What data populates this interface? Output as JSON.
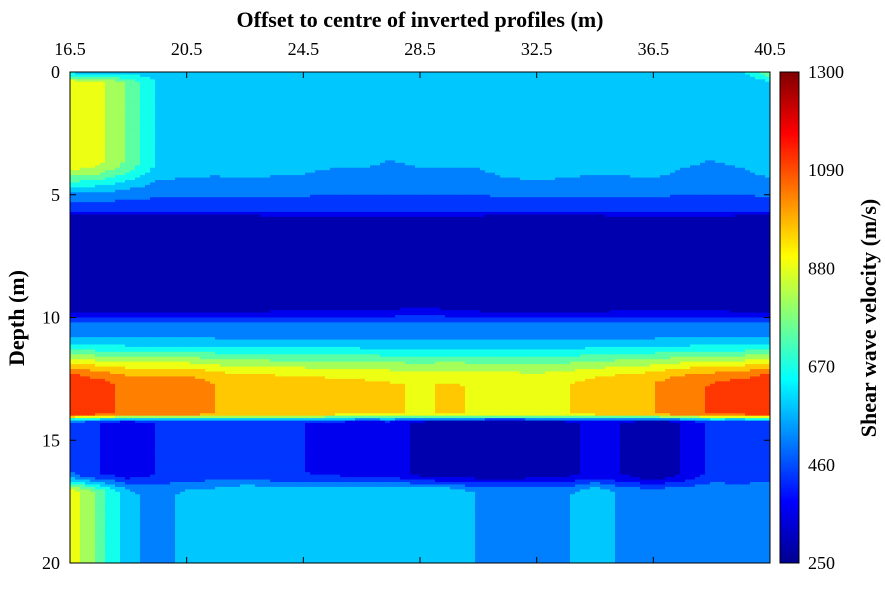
{
  "chart_data": {
    "type": "heatmap",
    "title": "Offset to centre of inverted profiles (m)",
    "xlabel": "",
    "ylabel": "Depth (m)",
    "colorbar_label": "Shear wave velocity (m/s)",
    "xlim": [
      16.5,
      40.5
    ],
    "ylim": [
      0,
      20
    ],
    "x_axis_position": "top",
    "y_axis_reversed": true,
    "x_ticks": [
      16.5,
      20.5,
      24.5,
      28.5,
      32.5,
      36.5,
      40.5
    ],
    "x_tick_labels": [
      "16.5",
      "20.5",
      "24.5",
      "28.5",
      "32.5",
      "36.5",
      "40.5"
    ],
    "y_ticks": [
      0,
      5,
      10,
      15,
      20
    ],
    "y_tick_labels": [
      "0",
      "5",
      "10",
      "15",
      "20"
    ],
    "colorbar_range": [
      250,
      1300
    ],
    "colorbar_ticks": [
      250,
      460,
      670,
      880,
      1090,
      1300
    ],
    "colorbar_tick_labels": [
      "250",
      "460",
      "670",
      "880",
      "1090",
      "1300"
    ],
    "colormap": "jet",
    "colormap_stops": [
      "#00008f",
      "#0000ff",
      "#00ffff",
      "#ffff00",
      "#ff0000",
      "#800000"
    ],
    "contour_levels": 14,
    "x": [
      16.5,
      17.5,
      18.5,
      19.5,
      20.5,
      21.5,
      22.5,
      23.5,
      24.5,
      25.5,
      26.5,
      27.5,
      28.5,
      29.5,
      30.5,
      31.5,
      32.5,
      33.5,
      34.5,
      35.5,
      36.5,
      37.5,
      38.5,
      39.5,
      40.5
    ],
    "depth": [
      0,
      0.5,
      1,
      1.5,
      2,
      2.5,
      3,
      3.5,
      4,
      4.5,
      5,
      5.5,
      6,
      6.5,
      7,
      7.5,
      8,
      8.5,
      9,
      9.5,
      10,
      10.5,
      11,
      11.5,
      12,
      12.5,
      13,
      13.5,
      14,
      14.5,
      15,
      15.5,
      16,
      16.5,
      17,
      17.5,
      18,
      18.5,
      19,
      19.5,
      20
    ],
    "layers": [
      {
        "depth_range": [
          0,
          4.5
        ],
        "vs": [
          920,
          880,
          760,
          620,
          600,
          590,
          600,
          590,
          580,
          560,
          560,
          550,
          560,
          560,
          560,
          600,
          620,
          600,
          580,
          590,
          600,
          560,
          550,
          560,
          600
        ],
        "note_top_surface": [
          620,
          600,
          600,
          600,
          600,
          600,
          600,
          600,
          600,
          600,
          600,
          600,
          600,
          600,
          600,
          600,
          600,
          600,
          600,
          600,
          600,
          600,
          600,
          600,
          760
        ]
      },
      {
        "depth_range": [
          5,
          10
        ],
        "vs": [
          270,
          270,
          270,
          270,
          275,
          280,
          285,
          290,
          290,
          300,
          300,
          310,
          320,
          310,
          290,
          280,
          270,
          280,
          280,
          300,
          300,
          300,
          310,
          280,
          270
        ]
      },
      {
        "depth_range": [
          10.5,
          14
        ],
        "vs": [
          1150,
          1100,
          1050,
          1050,
          1050,
          1000,
          980,
          970,
          960,
          950,
          940,
          930,
          920,
          930,
          920,
          910,
          900,
          920,
          950,
          980,
          1000,
          1050,
          1080,
          1100,
          1150
        ]
      },
      {
        "depth_range": [
          14.5,
          16.5
        ],
        "vs": [
          480,
          400,
          360,
          400,
          420,
          430,
          420,
          400,
          400,
          390,
          360,
          380,
          300,
          280,
          270,
          270,
          280,
          300,
          350,
          320,
          250,
          330,
          420,
          400,
          430
        ]
      },
      {
        "depth_range": [
          17,
          20
        ],
        "vs": [
          900,
          750,
          560,
          530,
          560,
          580,
          620,
          620,
          620,
          620,
          620,
          620,
          620,
          620,
          540,
          540,
          530,
          530,
          620,
          520,
          520,
          520,
          540,
          540,
          540
        ]
      }
    ]
  }
}
